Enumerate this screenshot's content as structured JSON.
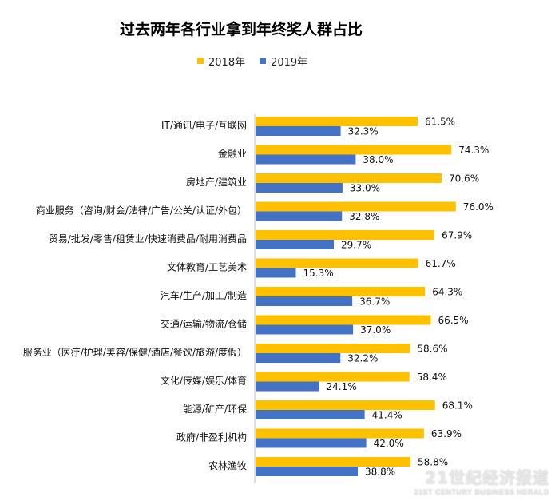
{
  "chart_data": {
    "type": "bar",
    "orientation": "horizontal",
    "title": "过去两年各行业拿到年终奖人群占比",
    "categories": [
      "IT/通讯/电子/互联网",
      "金融业",
      "房地产/建筑业",
      "商业服务（咨询/财会/法律/广告/公关/认证/外包）",
      "贸易/批发/零售/租赁业/快速消费品/耐用消费品",
      "文体教育/工艺美术",
      "汽车/生产/加工/制造",
      "交通/运输/物流/仓储",
      "服务业（医疗/护理/美容/保健/酒店/餐饮/旅游/度假）",
      "文化/传媒/娱乐/体育",
      "能源/矿产/环保",
      "政府/非盈利机构",
      "农林渔牧"
    ],
    "series": [
      {
        "name": "2018年",
        "color": "#FFC000",
        "values": [
          61.5,
          74.3,
          70.6,
          76.0,
          67.9,
          61.7,
          64.3,
          66.5,
          58.6,
          58.4,
          68.1,
          63.9,
          58.8
        ],
        "labels": [
          "61.5%",
          "74.3%",
          "70.6%",
          "76.0%",
          "67.9%",
          "61.7%",
          "64.3%",
          "66.5%",
          "58.6%",
          "58.4%",
          "68.1%",
          "63.9%",
          "58.8%"
        ]
      },
      {
        "name": "2019年",
        "color": "#4472C4",
        "values": [
          32.3,
          38.0,
          33.0,
          32.8,
          29.7,
          15.3,
          36.7,
          37.0,
          32.2,
          24.1,
          41.4,
          42.0,
          38.8
        ],
        "labels": [
          "32.3%",
          "38.0%",
          "33.0%",
          "32.8%",
          "29.7%",
          "15.3%",
          "36.7%",
          "37.0%",
          "32.2%",
          "24.1%",
          "41.4%",
          "42.0%",
          "38.8%"
        ]
      }
    ],
    "legend_position": "top",
    "grid": false
  },
  "watermark": {
    "cn": "21世纪经济报道",
    "en": "21ST CENTURY BUSINESS HERALD"
  }
}
